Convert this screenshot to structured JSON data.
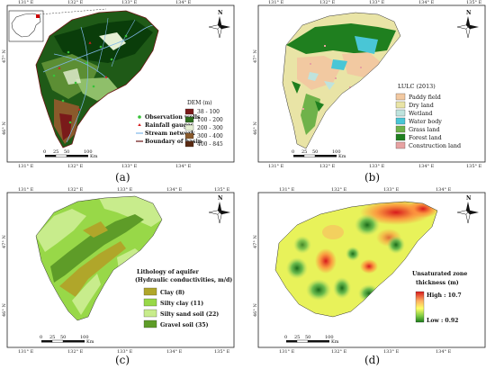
{
  "colors": {
    "frame": "#222222",
    "dem_dark": "#0a3d0a",
    "dem_mid": "#2e6e1e",
    "dem_light": "#8fbf6a",
    "dem_pale": "#e6f0d4",
    "dem_brown": "#8a5a2b",
    "dem_red": "#7a1a1a",
    "paddy": "#f2c9a1",
    "dryland": "#e9e4a6",
    "wetland": "#bfe3dd",
    "water": "#49c6d6",
    "grass": "#6fb24a",
    "forest": "#1f7f1f",
    "construction": "#e7a2a2",
    "clay": "#b0a62a",
    "silty_clay": "#98d848",
    "silty_sand": "#c8ec8c",
    "gravel": "#5e9c28",
    "stream": "#7fb7e8",
    "wells": "#39c239"
  },
  "panels": {
    "a": {
      "label": "(a)",
      "top_ticks": [
        "131° E",
        "132° E",
        "133° E",
        "134° E"
      ],
      "bottom_ticks": [
        "131° E",
        "132° E",
        "133° E",
        "134° E"
      ],
      "left_ticks": [
        "47° N",
        "46° N"
      ],
      "scale": {
        "ticks": [
          "0",
          "25",
          "50",
          "100"
        ],
        "unit": "Km"
      },
      "north": "N",
      "legend_points": [
        {
          "label": "Observation wells",
          "icon": "circle-icon"
        },
        {
          "label": "Rainfall gauges",
          "icon": "triangle-icon"
        },
        {
          "label": "Stream network",
          "icon": "line-icon"
        },
        {
          "label": "Boundary of basin",
          "icon": "line-icon"
        }
      ],
      "dem_title": "DEM (m)",
      "dem_classes": [
        "38 - 100",
        "100 - 200",
        "200 - 300",
        "300 - 400",
        "400 - 845"
      ]
    },
    "b": {
      "label": "(b)",
      "top_ticks": [
        "131° E",
        "132° E",
        "133° E",
        "134° E",
        "135° E"
      ],
      "bottom_ticks": [
        "131° E",
        "132° E",
        "133° E",
        "134° E",
        "135° E"
      ],
      "left_ticks": [
        "47° N",
        "46° N"
      ],
      "scale": {
        "ticks": [
          "0",
          "25",
          "50",
          "100"
        ],
        "unit": "Km"
      },
      "north": "N",
      "legend_title": "LULC (2013)",
      "classes": [
        "Paddy field",
        "Dry land",
        "Wetland",
        "Water body",
        "Grass land",
        "Forest land",
        "Construction land"
      ]
    },
    "c": {
      "label": "(c)",
      "top_ticks": [
        "131° E",
        "132° E",
        "133° E",
        "134° E",
        "135° E"
      ],
      "bottom_ticks": [
        "131° E",
        "132° E",
        "133° E",
        "134° E",
        "135° E"
      ],
      "left_ticks": [
        "47° N",
        "46° N"
      ],
      "scale": {
        "ticks": [
          "0",
          "25",
          "50",
          "100"
        ],
        "unit": "Km"
      },
      "north": "N",
      "legend_title_1": "Lithology of aquifer",
      "legend_title_2": "(Hydraulic conductivities, m/d)",
      "classes": [
        "Clay (8)",
        "Silty clay (11)",
        "Silty sand soil (22)",
        "Gravel soil (35)"
      ]
    },
    "d": {
      "label": "(d)",
      "top_ticks": [
        "131° E",
        "132° E",
        "133° E",
        "134° E"
      ],
      "bottom_ticks": [
        "131° E",
        "132° E",
        "133° E",
        "134° E"
      ],
      "left_ticks": [
        "47° N",
        "46° N"
      ],
      "scale": {
        "ticks": [
          "0",
          "25",
          "50",
          "100"
        ],
        "unit": "Km"
      },
      "north": "N",
      "legend_title_1": "Unsaturated zone",
      "legend_title_2": "thickness (m)",
      "high_label": "High : 10.7",
      "low_label": "Low : 0.92"
    }
  }
}
